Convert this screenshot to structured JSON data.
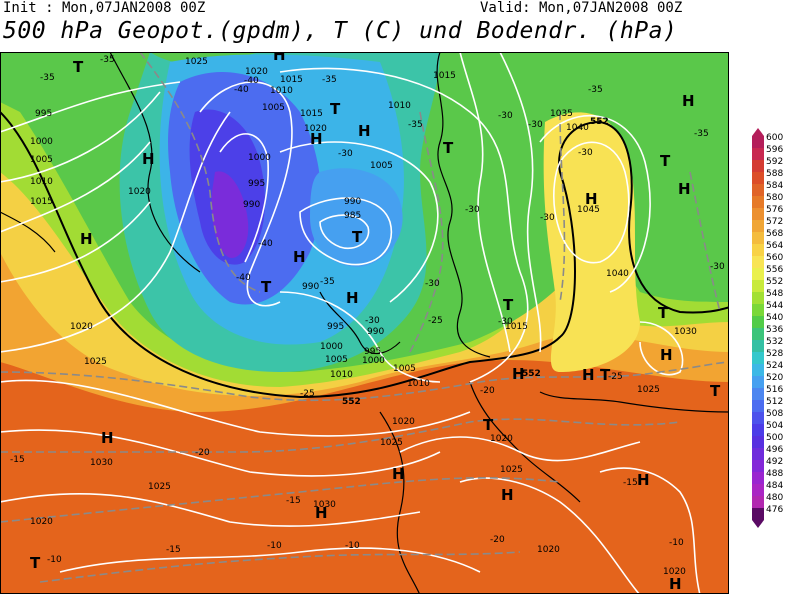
{
  "header": {
    "init": "Init : Mon,07JAN2008 00Z",
    "valid": "Valid: Mon,07JAN2008 00Z",
    "title": "500 hPa Geopot.(gpdm), T (C) und Bodendr. (hPa)"
  },
  "legend": {
    "labels": [
      "600",
      "596",
      "592",
      "588",
      "584",
      "580",
      "576",
      "572",
      "568",
      "564",
      "560",
      "556",
      "552",
      "548",
      "544",
      "540",
      "536",
      "532",
      "528",
      "524",
      "520",
      "516",
      "512",
      "508",
      "504",
      "500",
      "496",
      "492",
      "488",
      "484",
      "480",
      "476"
    ],
    "colors": [
      "#b41e5a",
      "#c82850",
      "#d43c32",
      "#dc4e28",
      "#e06428",
      "#e67a28",
      "#ec9030",
      "#f0a636",
      "#f4bc3e",
      "#f8d246",
      "#f8e454",
      "#eaf04c",
      "#c8ea3c",
      "#a2e034",
      "#7ad838",
      "#52cc48",
      "#3cc47a",
      "#34c0a4",
      "#34c8cc",
      "#3cb8e6",
      "#46a0f0",
      "#4c86f0",
      "#4c6cf0",
      "#4c52ec",
      "#4c3ce8",
      "#5830e0",
      "#6e2cdc",
      "#8428d8",
      "#9a26d0",
      "#aa26c4",
      "#b228b0",
      "#5a0a64"
    ]
  },
  "map": {
    "pressure_labels": [
      "1025",
      "1020",
      "1015",
      "1010",
      "1005",
      "1000",
      "995",
      "990",
      "985",
      "1035",
      "1040",
      "1045",
      "1030"
    ],
    "temp_labels": [
      "-35",
      "-40",
      "-30",
      "-25",
      "-20",
      "-15",
      "-10"
    ],
    "geopot_label": "552",
    "high_letter": "H",
    "low_letter": "T",
    "colors": {
      "frame": "#000000",
      "isobar": "#ffffff",
      "isotherm": "#8a8a8a",
      "coast": "#000000"
    }
  }
}
